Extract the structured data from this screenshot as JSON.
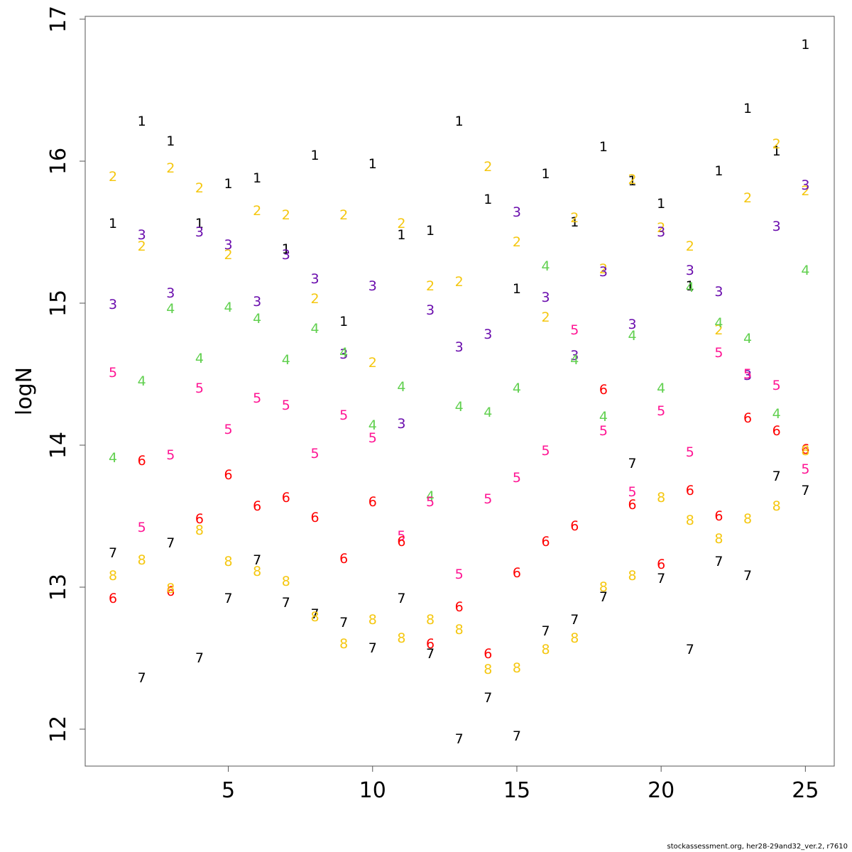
{
  "chart_data": {
    "type": "scatter",
    "title": "",
    "xlabel": "",
    "ylabel": "logN",
    "xlim": [
      0.04,
      26.0
    ],
    "ylim": [
      11.74,
      17.02
    ],
    "x_ticks": [
      5,
      10,
      15,
      20,
      25
    ],
    "y_ticks": [
      12,
      13,
      14,
      15,
      16,
      17
    ],
    "grid": false,
    "legend": "none",
    "colors": {
      "1": "#000000",
      "2": "#F5C710",
      "3": "#6A0DAD",
      "4": "#61D04F",
      "5": "#FF1493",
      "6": "#FF0000",
      "7": "#000000",
      "8": "#F5C710"
    },
    "series": [
      {
        "marker": "1",
        "x": [
          1,
          2,
          3,
          4,
          5,
          6,
          7,
          8,
          9,
          10,
          11,
          12,
          13,
          14,
          15,
          16,
          17,
          18,
          19,
          20,
          21,
          22,
          23,
          24,
          25
        ],
        "values": [
          15.56,
          16.28,
          16.14,
          15.56,
          15.84,
          15.88,
          15.38,
          16.04,
          14.87,
          15.98,
          15.48,
          15.51,
          16.28,
          15.73,
          15.1,
          15.91,
          15.57,
          16.1,
          15.86,
          15.7,
          15.12,
          15.93,
          16.37,
          16.07,
          16.82
        ]
      },
      {
        "marker": "2",
        "x": [
          1,
          2,
          3,
          4,
          5,
          6,
          7,
          8,
          9,
          10,
          11,
          12,
          13,
          14,
          15,
          16,
          17,
          18,
          19,
          20,
          21,
          22,
          23,
          24,
          25
        ],
        "values": [
          15.89,
          15.4,
          15.95,
          15.81,
          15.34,
          15.65,
          15.62,
          15.03,
          15.62,
          14.58,
          15.56,
          15.12,
          15.15,
          15.96,
          15.43,
          14.9,
          15.6,
          15.24,
          15.87,
          15.53,
          15.4,
          14.81,
          15.74,
          16.12,
          15.79
        ]
      },
      {
        "marker": "3",
        "x": [
          1,
          2,
          3,
          4,
          5,
          6,
          7,
          8,
          9,
          10,
          11,
          12,
          13,
          14,
          15,
          16,
          17,
          18,
          19,
          20,
          21,
          22,
          23,
          24,
          25
        ],
        "values": [
          14.99,
          15.48,
          15.07,
          15.5,
          15.41,
          15.01,
          15.34,
          15.17,
          14.64,
          15.12,
          14.15,
          14.95,
          14.69,
          14.78,
          15.64,
          15.04,
          14.63,
          15.22,
          14.85,
          15.5,
          15.23,
          15.08,
          14.49,
          15.54,
          15.83
        ]
      },
      {
        "marker": "4",
        "x": [
          1,
          2,
          3,
          4,
          5,
          6,
          7,
          8,
          9,
          10,
          11,
          12,
          13,
          14,
          15,
          16,
          17,
          18,
          19,
          20,
          21,
          22,
          23,
          24,
          25
        ],
        "values": [
          13.91,
          14.45,
          14.96,
          14.61,
          14.97,
          14.89,
          14.6,
          14.82,
          14.65,
          14.14,
          14.41,
          13.64,
          14.27,
          14.23,
          14.4,
          15.26,
          14.6,
          14.2,
          14.77,
          14.4,
          15.11,
          14.86,
          14.75,
          14.22,
          15.23
        ]
      },
      {
        "marker": "5",
        "x": [
          1,
          2,
          3,
          4,
          5,
          6,
          7,
          8,
          9,
          10,
          11,
          12,
          13,
          14,
          15,
          16,
          17,
          18,
          19,
          20,
          21,
          22,
          23,
          24,
          25
        ],
        "values": [
          14.51,
          13.42,
          13.93,
          14.4,
          14.11,
          14.33,
          14.28,
          13.94,
          14.21,
          14.05,
          13.36,
          13.6,
          13.09,
          13.62,
          13.77,
          13.96,
          14.81,
          14.1,
          13.67,
          14.24,
          13.95,
          14.65,
          14.5,
          14.42,
          13.83
        ]
      },
      {
        "marker": "6",
        "x": [
          1,
          2,
          3,
          4,
          5,
          6,
          7,
          8,
          9,
          10,
          11,
          12,
          13,
          14,
          15,
          16,
          17,
          18,
          19,
          20,
          21,
          22,
          23,
          24,
          25
        ],
        "values": [
          12.92,
          13.89,
          12.97,
          13.48,
          13.79,
          13.57,
          13.63,
          13.49,
          13.2,
          13.6,
          13.32,
          12.6,
          12.86,
          12.53,
          13.1,
          13.32,
          13.43,
          14.39,
          13.58,
          13.16,
          13.68,
          13.5,
          14.19,
          14.1,
          13.97
        ]
      },
      {
        "marker": "7",
        "x": [
          1,
          2,
          3,
          4,
          5,
          6,
          7,
          8,
          9,
          10,
          11,
          12,
          13,
          14,
          15,
          16,
          17,
          18,
          19,
          20,
          21,
          22,
          23,
          24,
          25
        ],
        "values": [
          13.24,
          12.36,
          13.31,
          12.5,
          12.92,
          13.19,
          12.89,
          12.81,
          12.75,
          12.57,
          12.92,
          12.53,
          11.93,
          12.22,
          11.95,
          12.69,
          12.77,
          12.93,
          13.87,
          13.06,
          12.56,
          13.18,
          13.08,
          13.78,
          13.68
        ]
      },
      {
        "marker": "8",
        "x": [
          1,
          2,
          3,
          4,
          5,
          6,
          7,
          8,
          9,
          10,
          11,
          12,
          13,
          14,
          15,
          16,
          17,
          18,
          19,
          20,
          21,
          22,
          23,
          24,
          25
        ],
        "values": [
          13.08,
          13.19,
          12.99,
          13.4,
          13.18,
          13.11,
          13.04,
          12.79,
          12.6,
          12.77,
          12.64,
          12.77,
          12.7,
          12.42,
          12.43,
          12.56,
          12.64,
          13.0,
          13.08,
          13.63,
          13.47,
          13.34,
          13.48,
          13.57,
          13.96
        ]
      }
    ]
  },
  "footer": {
    "credit": "stockassessment.org, her28-29and32_ver.2, r7610"
  }
}
